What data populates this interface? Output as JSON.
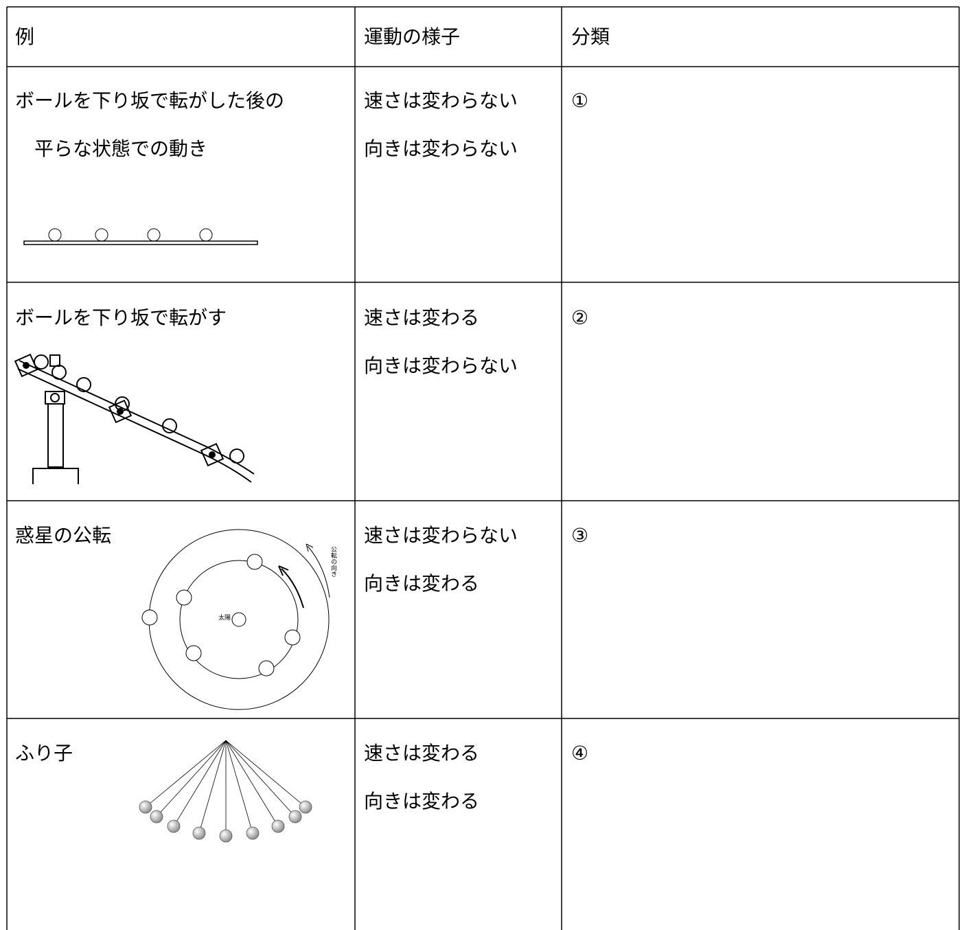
{
  "table": {
    "header": [
      "例",
      "運動の様子",
      "分類"
    ],
    "rows": [
      {
        "example": [
          "ボールを下り坂で転がした後の",
          "平らな状態での動き"
        ],
        "motion": [
          "速さは変わらない",
          "向きは変わらない"
        ],
        "class": "①"
      },
      {
        "example": [
          "ボールを下り坂で転がす"
        ],
        "motion": [
          "速さは変わる",
          "向きは変わらない"
        ],
        "class": "②"
      },
      {
        "example": [
          "惑星の公転"
        ],
        "motion": [
          "速さは変わらない",
          "向きは変わる"
        ],
        "class": "③",
        "figure_labels": [
          "太陽",
          "公転の向き"
        ]
      },
      {
        "example": [
          "ふり子"
        ],
        "motion": [
          "速さは変わる",
          "向きは変わる"
        ],
        "class": "④"
      }
    ]
  }
}
